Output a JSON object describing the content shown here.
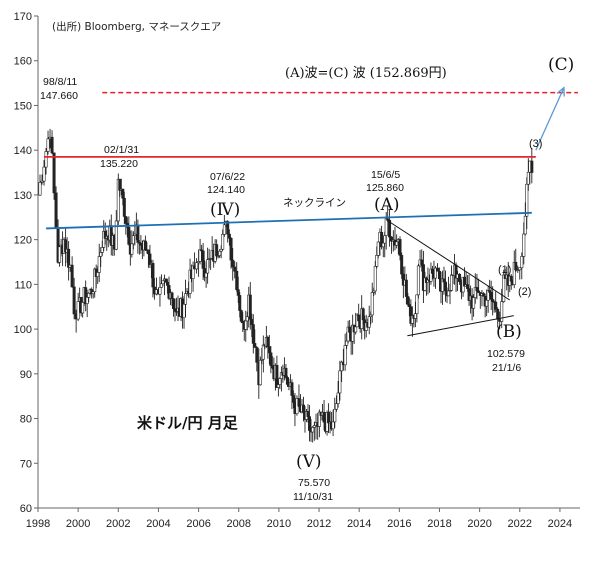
{
  "chart_data": {
    "type": "candlestick",
    "title": "米ドル/円 月足",
    "source": "(出所)  Bloomberg, マネースクエア",
    "xlim": [
      1998,
      2025
    ],
    "ylim": [
      60,
      170
    ],
    "x_ticks": [
      1998,
      2000,
      2002,
      2004,
      2006,
      2008,
      2010,
      2012,
      2014,
      2016,
      2018,
      2020,
      2022,
      2024
    ],
    "y_ticks": [
      60,
      70,
      80,
      90,
      100,
      110,
      120,
      130,
      140,
      150,
      160,
      170
    ],
    "grid": false,
    "series": [
      {
        "name": "USD/JPY monthly",
        "points": [
          [
            1998.0,
            130
          ],
          [
            1998.2,
            135
          ],
          [
            1998.4,
            140
          ],
          [
            1998.6,
            145
          ],
          [
            1998.8,
            130
          ],
          [
            1999.0,
            116
          ],
          [
            1999.3,
            120
          ],
          [
            1999.6,
            114
          ],
          [
            1999.8,
            105
          ],
          [
            2000.0,
            104
          ],
          [
            2000.3,
            107
          ],
          [
            2000.6,
            108
          ],
          [
            2000.9,
            112
          ],
          [
            2001.2,
            120
          ],
          [
            2001.5,
            122
          ],
          [
            2001.8,
            118
          ],
          [
            2002.0,
            133
          ],
          [
            2002.3,
            127
          ],
          [
            2002.6,
            119
          ],
          [
            2002.9,
            121
          ],
          [
            2003.2,
            118
          ],
          [
            2003.5,
            118
          ],
          [
            2003.8,
            109
          ],
          [
            2004.0,
            106
          ],
          [
            2004.3,
            110
          ],
          [
            2004.6,
            109
          ],
          [
            2004.9,
            103
          ],
          [
            2005.2,
            105
          ],
          [
            2005.5,
            110
          ],
          [
            2005.8,
            113
          ],
          [
            2006.0,
            117
          ],
          [
            2006.3,
            114
          ],
          [
            2006.6,
            115
          ],
          [
            2006.9,
            118
          ],
          [
            2007.2,
            121
          ],
          [
            2007.45,
            123
          ],
          [
            2007.7,
            115
          ],
          [
            2007.9,
            111
          ],
          [
            2008.2,
            100
          ],
          [
            2008.5,
            107
          ],
          [
            2008.8,
            96
          ],
          [
            2009.0,
            90
          ],
          [
            2009.3,
            97
          ],
          [
            2009.6,
            93
          ],
          [
            2009.9,
            89
          ],
          [
            2010.2,
            92
          ],
          [
            2010.5,
            87
          ],
          [
            2010.8,
            83
          ],
          [
            2011.0,
            82
          ],
          [
            2011.3,
            80
          ],
          [
            2011.6,
            77
          ],
          [
            2011.85,
            77
          ],
          [
            2012.1,
            80
          ],
          [
            2012.4,
            79
          ],
          [
            2012.7,
            78
          ],
          [
            2012.95,
            86
          ],
          [
            2013.3,
            97
          ],
          [
            2013.6,
            99
          ],
          [
            2013.9,
            103
          ],
          [
            2014.2,
            102
          ],
          [
            2014.5,
            102
          ],
          [
            2014.8,
            112
          ],
          [
            2014.95,
            120
          ],
          [
            2015.2,
            120
          ],
          [
            2015.42,
            124
          ],
          [
            2015.7,
            120
          ],
          [
            2015.95,
            120
          ],
          [
            2016.2,
            112
          ],
          [
            2016.5,
            103
          ],
          [
            2016.8,
            104
          ],
          [
            2016.95,
            116
          ],
          [
            2017.2,
            111
          ],
          [
            2017.5,
            112
          ],
          [
            2017.8,
            113
          ],
          [
            2018.0,
            109
          ],
          [
            2018.3,
            109
          ],
          [
            2018.6,
            111
          ],
          [
            2018.9,
            113
          ],
          [
            2019.1,
            110
          ],
          [
            2019.4,
            108
          ],
          [
            2019.7,
            106
          ],
          [
            2019.95,
            109
          ],
          [
            2020.2,
            107
          ],
          [
            2020.5,
            107
          ],
          [
            2020.8,
            105
          ],
          [
            2021.0,
            103.5
          ],
          [
            2021.2,
            110
          ],
          [
            2021.5,
            110
          ],
          [
            2021.8,
            114
          ],
          [
            2022.0,
            115
          ],
          [
            2022.2,
            122
          ],
          [
            2022.35,
            130
          ],
          [
            2022.5,
            137
          ],
          [
            2022.6,
            135
          ]
        ]
      }
    ],
    "annotations": {
      "peak_1998": {
        "date": "98/8/11",
        "value": "147.660"
      },
      "peak_2002": {
        "date": "02/1/31",
        "value": "135.220"
      },
      "peak_2007": {
        "date": "07/6/22",
        "value": "124.140"
      },
      "peak_2015": {
        "date": "15/6/5",
        "value": "125.860"
      },
      "low_2011": {
        "date": "11/10/31",
        "value": "75.570"
      },
      "low_2021": {
        "date": "21/1/6",
        "value": "102.579"
      },
      "wave_iv": "(Ⅳ)",
      "wave_v": "(Ⅴ)",
      "wave_a": "(A)",
      "wave_b": "(B)",
      "wave_c": "(C)",
      "sub_1": "(1)",
      "sub_2": "(2)",
      "sub_3": "(3)",
      "neckline": "ネックライン",
      "target_label": "(A)波=(C) 波 (152.869円)"
    },
    "lines": {
      "target_value": 152.869,
      "resistance_value": 138.5,
      "neckline_start": [
        1998.4,
        122.5
      ],
      "neckline_end": [
        2022.6,
        126
      ],
      "triangle_upper": [
        [
          2015.5,
          124
        ],
        [
          2021.5,
          106.5
        ]
      ],
      "triangle_lower": [
        [
          2016.4,
          98.5
        ],
        [
          2021.7,
          103
        ]
      ],
      "arrow_start": [
        2022.8,
        140
      ],
      "arrow_end": [
        2024.2,
        154
      ]
    },
    "colors": {
      "target_line": "#e8242a",
      "resistance_line": "#e8242a",
      "neckline": "#1f6fb5",
      "arrow": "#5b9bd5",
      "candles": "#222222"
    }
  }
}
